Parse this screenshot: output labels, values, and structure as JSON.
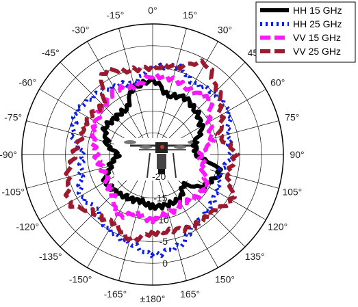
{
  "chart_data": {
    "type": "polar-line",
    "angle_direction": "clockwise",
    "zero_at": "top",
    "angle_ticks": [
      {
        "deg": 0,
        "label": "0°"
      },
      {
        "deg": 15,
        "label": "15°"
      },
      {
        "deg": 30,
        "label": "30°"
      },
      {
        "deg": 45,
        "label": "45°"
      },
      {
        "deg": 60,
        "label": "60°"
      },
      {
        "deg": 75,
        "label": "75°"
      },
      {
        "deg": 90,
        "label": "90°"
      },
      {
        "deg": 105,
        "label": "105°"
      },
      {
        "deg": 120,
        "label": "120°"
      },
      {
        "deg": 135,
        "label": "135°"
      },
      {
        "deg": 150,
        "label": "150°"
      },
      {
        "deg": 165,
        "label": "165°"
      },
      {
        "deg": 180,
        "label": "±180°"
      },
      {
        "deg": -165,
        "label": "-165°"
      },
      {
        "deg": -150,
        "label": "-150°"
      },
      {
        "deg": -135,
        "label": "-135°"
      },
      {
        "deg": -120,
        "label": "-120°"
      },
      {
        "deg": -105,
        "label": "-105°"
      },
      {
        "deg": -90,
        "label": "-90°"
      },
      {
        "deg": -75,
        "label": "-75°"
      },
      {
        "deg": -60,
        "label": "-60°"
      },
      {
        "deg": -45,
        "label": "-45°"
      },
      {
        "deg": -30,
        "label": "-30°"
      },
      {
        "deg": -15,
        "label": "-15°"
      }
    ],
    "radial_ticks": [
      {
        "value": -20,
        "label": "-20"
      },
      {
        "value": -15,
        "label": "-15"
      },
      {
        "value": -10,
        "label": "-10"
      },
      {
        "value": -5,
        "label": "-5"
      },
      {
        "value": 0,
        "label": "0"
      }
    ],
    "rlim": [
      -25,
      5
    ],
    "legend_position": "top-right",
    "grid": true,
    "series": [
      {
        "name": "HH 15 GHz",
        "color": "#000000",
        "dash": "solid",
        "angles": [
          -180,
          -165,
          -150,
          -135,
          -120,
          -105,
          -90,
          -75,
          -60,
          -45,
          -30,
          -15,
          0,
          15,
          30,
          45,
          60,
          75,
          90,
          105,
          120,
          135,
          150,
          165
        ],
        "values": [
          -13,
          -14,
          -13.5,
          -13,
          -12.5,
          -15,
          -17,
          -14,
          -12.5,
          -13,
          -13,
          -9,
          -8,
          -11,
          -10,
          -11,
          -12,
          -15,
          -15,
          -9,
          -11,
          -15,
          -13,
          -13
        ]
      },
      {
        "name": "HH 25 GHz",
        "color": "#0a1ee6",
        "dash": "dot",
        "angles": [
          -180,
          -165,
          -150,
          -135,
          -120,
          -105,
          -90,
          -75,
          -60,
          -45,
          -30,
          -15,
          0,
          15,
          30,
          45,
          60,
          75,
          90,
          105,
          120,
          135,
          150,
          165
        ],
        "values": [
          -2,
          -4,
          -5,
          -7,
          -6,
          -8,
          -9,
          -6,
          -5,
          -6,
          -7,
          -8,
          -5,
          -4,
          -6,
          -5,
          -5,
          -7,
          -7,
          -9,
          -8,
          -7,
          -6,
          -3
        ]
      },
      {
        "name": "VV 15 GHz",
        "color": "#ff17ff",
        "dash": "dash",
        "angles": [
          -180,
          -165,
          -150,
          -135,
          -120,
          -105,
          -90,
          -75,
          -60,
          -45,
          -30,
          -15,
          0,
          15,
          30,
          45,
          60,
          75,
          90,
          105,
          120,
          135,
          150,
          165
        ],
        "values": [
          -10,
          -11,
          -9,
          -12,
          -13,
          -13,
          -12,
          -11,
          -10,
          -9,
          -8,
          -9,
          -7,
          -7,
          -8,
          -7,
          -10,
          -11,
          -14,
          -13,
          -11,
          -11,
          -12,
          -11
        ]
      },
      {
        "name": "VV 25 GHz",
        "color": "#9b1a2f",
        "dash": "dash",
        "angles": [
          -180,
          -165,
          -150,
          -135,
          -120,
          -105,
          -90,
          -75,
          -60,
          -45,
          -30,
          -15,
          0,
          15,
          30,
          45,
          60,
          75,
          90,
          105,
          120,
          135,
          150,
          165
        ],
        "values": [
          -7,
          -5,
          -7,
          -6,
          -3,
          -5,
          -7,
          -8,
          -8,
          -9,
          -3,
          -5,
          -5,
          -4,
          -1,
          -4,
          -7,
          -9,
          -6,
          -7,
          -4,
          -6,
          -6,
          -7
        ]
      }
    ]
  }
}
